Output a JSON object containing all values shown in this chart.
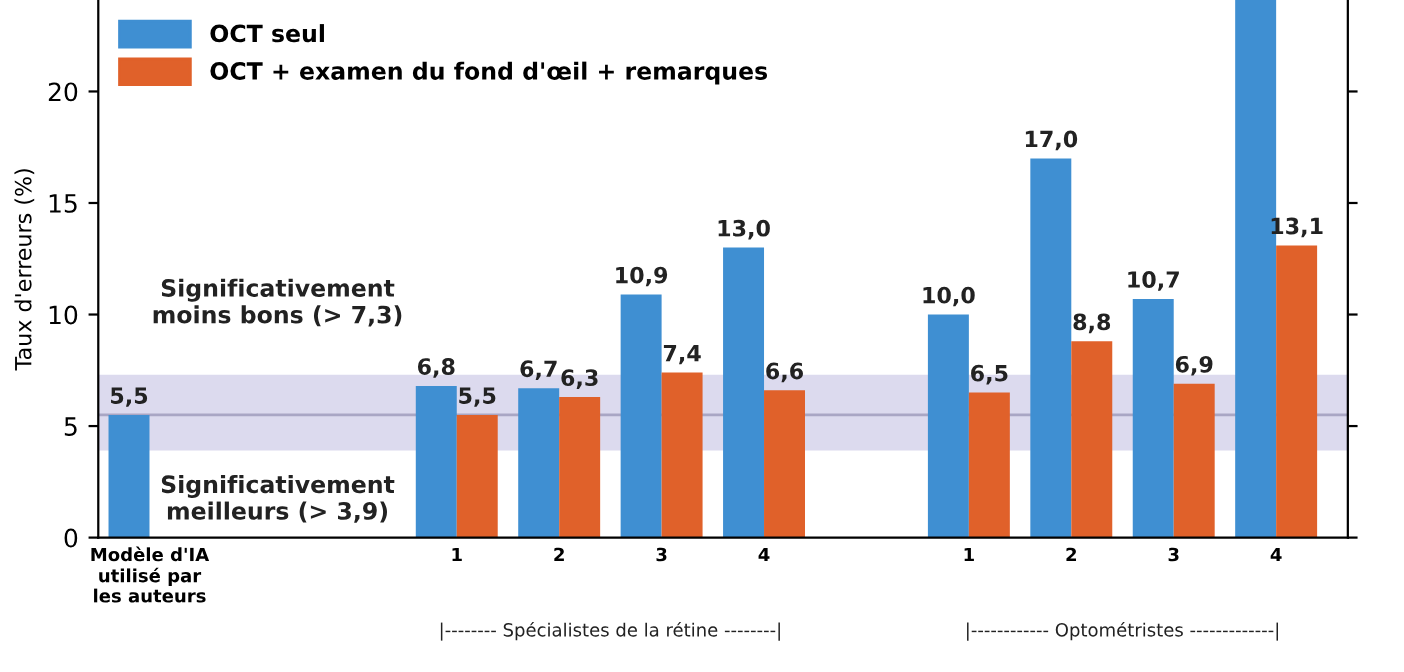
{
  "chart_data": {
    "type": "bar",
    "ylabel": "Taux d'erreurs (%)",
    "categories": [
      "Modèle d'IA\nutilisé par\nles auteurs",
      null,
      null,
      "1",
      "2",
      "3",
      "4",
      null,
      "1",
      "2",
      "3",
      "4"
    ],
    "series": [
      {
        "name": "OCT seul",
        "color": "#3f8fd2",
        "values": [
          5.5,
          null,
          null,
          6.8,
          6.7,
          10.9,
          13.0,
          null,
          10.0,
          17.0,
          10.7,
          24.1
        ],
        "value_labels": [
          "5,5",
          null,
          null,
          "6,8",
          "6,7",
          "10,9",
          "13,0",
          null,
          "10,0",
          "17,0",
          "10,7",
          null
        ]
      },
      {
        "name": "OCT + examen du fond d'œil + remarques",
        "color": "#e0612a",
        "values": [
          null,
          null,
          null,
          5.5,
          6.3,
          7.4,
          6.6,
          null,
          6.5,
          8.8,
          6.9,
          13.1
        ],
        "value_labels": [
          null,
          null,
          null,
          "5,5",
          "6,3",
          "7,4",
          "6,6",
          null,
          "6,5",
          "8,8",
          "6,9",
          "13,1"
        ]
      }
    ],
    "ylim": [
      0,
      24.1
    ],
    "yticks": [
      0,
      5,
      10,
      15,
      20
    ],
    "bands": [
      {
        "axis": "y",
        "from": 3.9,
        "to": 7.3,
        "color": "#dcdaee"
      }
    ],
    "ref_lines": [
      {
        "axis": "y",
        "value": 5.5,
        "color": "#a9a6c4"
      }
    ],
    "annotations": [
      "Significativement\nmoins bons (> 7,3)",
      "Significativement\nmeilleurs (> 3,9)",
      "|-------- Spécialistes de la rétine --------|",
      "|------------ Optométristes -------------|"
    ],
    "legend": "top left",
    "grid": false
  }
}
